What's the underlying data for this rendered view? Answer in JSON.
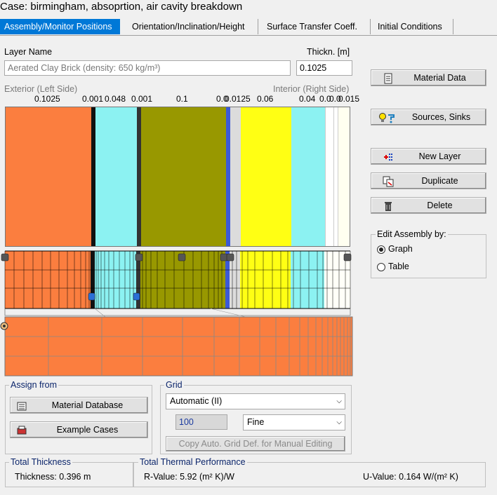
{
  "case_title": "Case:  birmingham, absoprtion, air cavity breakdown",
  "tabs": [
    {
      "label": "Assembly/Monitor Positions",
      "active": true
    },
    {
      "label": "Orientation/Inclination/Height",
      "active": false
    },
    {
      "label": "Surface Transfer Coeff.",
      "active": false
    },
    {
      "label": "Initial Conditions",
      "active": false
    }
  ],
  "layer_name": {
    "label": "Layer Name",
    "value": "Aerated Clay Brick (density: 650 kg/m³)"
  },
  "thickness": {
    "label": "Thickn. [m]",
    "value": "0.1025"
  },
  "side_labels": {
    "exterior": "Exterior (Left Side)",
    "interior": "Interior (Right Side)"
  },
  "layer_thickness_labels": [
    "0.1025",
    "0.001",
    "0.048",
    "0.001",
    "0.1",
    "0.0",
    "0.0125",
    "0.06",
    "0.04",
    "0.0",
    "0.0",
    "0.015"
  ],
  "layers": [
    {
      "color": "#fb7e3f",
      "thickness_label": "0.1025"
    },
    {
      "color": "#111111",
      "thickness_label": "0.001"
    },
    {
      "color": "#8cf2f2",
      "thickness_label": "0.048"
    },
    {
      "color": "#111111",
      "thickness_label": "0.001"
    },
    {
      "color": "#989800",
      "thickness_label": "0.1"
    },
    {
      "color": "#3c5ad7",
      "thickness_label": "0.0"
    },
    {
      "color": "#dcdcdc",
      "thickness_label": "0.0125"
    },
    {
      "color": "#ffff14",
      "thickness_label": "0.06"
    },
    {
      "color": "#8cf2f2",
      "thickness_label": "0.04"
    },
    {
      "color": "#ffffff",
      "thickness_label": "0.0"
    },
    {
      "color": "#ffffff",
      "thickness_label": "0.0"
    },
    {
      "color": "#fffff0",
      "thickness_label": "0.015"
    }
  ],
  "buttons_right": {
    "material_data": "Material Data",
    "sources_sinks": "Sources, Sinks",
    "new_layer": "New Layer",
    "duplicate": "Duplicate",
    "delete": "Delete"
  },
  "edit_assembly": {
    "label": "Edit Assembly by:",
    "options": [
      "Graph",
      "Table"
    ],
    "selected": "Graph"
  },
  "assign_from": {
    "label": "Assign from",
    "material_database": "Material Database",
    "example_cases": "Example Cases"
  },
  "grid": {
    "label": "Grid",
    "mode": "Automatic (II)",
    "count": "100",
    "density": "Fine",
    "copy_button": "Copy Auto. Grid Def. for Manual Editing"
  },
  "total_thickness": {
    "label": "Total Thickness",
    "text": "Thickness: 0.396 m"
  },
  "thermal": {
    "label": "Total Thermal Performance",
    "r_value": "R-Value: 5.92 (m² K)/W",
    "u_value": "U-Value: 0.164 W/(m² K)"
  },
  "icons": [
    "document-icon",
    "lightbulb-faucet-icon",
    "new-layer-icon",
    "duplicate-icon",
    "trash-icon",
    "database-icon",
    "example-cases-icon",
    "monitor-icon",
    "source-icon",
    "radio-marker-icon"
  ]
}
